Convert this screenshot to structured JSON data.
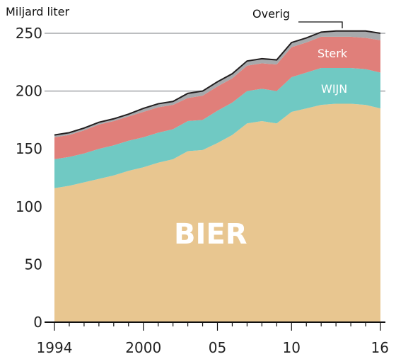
{
  "chart_data": {
    "type": "area",
    "ylabel": "Miljard liter",
    "x": [
      1994,
      1995,
      1996,
      1997,
      1998,
      1999,
      2000,
      2001,
      2002,
      2003,
      2004,
      2005,
      2006,
      2007,
      2008,
      2009,
      2010,
      2011,
      2012,
      2013,
      2014,
      2015,
      2016
    ],
    "xtick_values": [
      1994,
      2000,
      2005,
      2010,
      2016
    ],
    "xtick_labels": [
      "1994",
      "2000",
      "05",
      "10",
      "16"
    ],
    "ylim": [
      0,
      260
    ],
    "yticks": [
      0,
      50,
      100,
      150,
      200,
      250
    ],
    "ytick_labels": [
      "0",
      "50",
      "100",
      "150",
      "200",
      "250"
    ],
    "gridlines": [
      200,
      250
    ],
    "series": [
      {
        "name": "BIER",
        "color": "#e8c690",
        "values": [
          116,
          118,
          121,
          124,
          127,
          131,
          134,
          138,
          141,
          148,
          149,
          155,
          162,
          172,
          174,
          172,
          182,
          185,
          188,
          189,
          189,
          188,
          185
        ]
      },
      {
        "name": "WIJN",
        "color": "#70c9c3",
        "values": [
          25,
          25,
          25,
          26,
          26,
          26,
          26,
          26,
          26,
          26,
          26,
          28,
          28,
          28,
          28,
          28,
          30,
          31,
          32,
          31,
          31,
          31,
          31
        ]
      },
      {
        "name": "Sterk",
        "color": "#e07f7a",
        "values": [
          19,
          19,
          20,
          21,
          21,
          21,
          22,
          22,
          21,
          20,
          21,
          21,
          21,
          22,
          22,
          23,
          26,
          26,
          27,
          27,
          27,
          27,
          28
        ]
      },
      {
        "name": "Overig",
        "color": "#a7a9ac",
        "values": [
          2,
          2,
          2,
          2,
          2,
          2,
          3,
          3,
          3,
          4,
          4,
          4,
          4,
          4,
          4,
          4,
          4,
          4,
          4,
          5,
          5,
          6,
          6
        ]
      }
    ]
  }
}
